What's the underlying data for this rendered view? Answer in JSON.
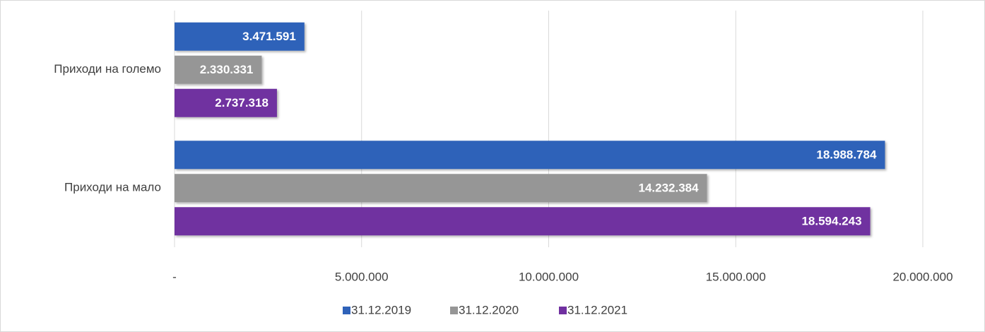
{
  "chart_data": {
    "type": "hbar",
    "categories": [
      "Приходи на големо",
      "Приходи на мало"
    ],
    "series": [
      {
        "name": "31.12.2019",
        "color": "#2f62b9",
        "values": [
          3471591,
          18988784
        ],
        "value_labels": [
          "3.471.591",
          "18.988.784"
        ]
      },
      {
        "name": "31.12.2020",
        "color": "#969696",
        "values": [
          2330331,
          14232384
        ],
        "value_labels": [
          "2.330.331",
          "14.232.384"
        ]
      },
      {
        "name": "31.12.2021",
        "color": "#7030a0",
        "values": [
          2737318,
          18594243
        ],
        "value_labels": [
          "2.737.318",
          "18.594.243"
        ]
      }
    ],
    "xlim": [
      0,
      20000000
    ],
    "xticks": [
      {
        "value": 0,
        "label": "-"
      },
      {
        "value": 5000000,
        "label": "5.000.000"
      },
      {
        "value": 10000000,
        "label": "10.000.000"
      },
      {
        "value": 15000000,
        "label": "15.000.000"
      },
      {
        "value": 20000000,
        "label": "20.000.000"
      }
    ],
    "grid": true,
    "legend": "bottom"
  }
}
